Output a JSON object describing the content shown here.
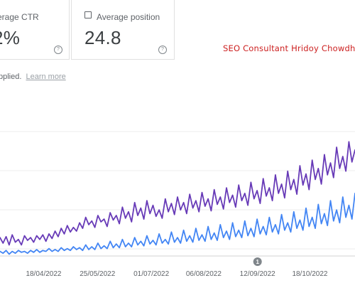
{
  "metrics": {
    "ctr": {
      "label": "verage CTR",
      "value": "2%",
      "help": "?"
    },
    "position": {
      "label": "Average position",
      "value": "24.8",
      "help": "?"
    }
  },
  "watermark": "SEO Consultant Hridoy Chowdhu",
  "filter": {
    "text": "pplied.",
    "link": "Learn more"
  },
  "annotation": {
    "label": "1",
    "date": "12/09/2022"
  },
  "colors": {
    "series_purple": "#673ab7",
    "series_blue": "#4285f4",
    "watermark": "#cc1f1f"
  },
  "chart_data": {
    "type": "line",
    "title": "",
    "xlabel": "",
    "ylabel": "",
    "grid": true,
    "x_ticks": [
      "18/04/2022",
      "25/05/2022",
      "01/07/2022",
      "06/08/2022",
      "12/09/2022",
      "18/10/2022"
    ],
    "x_range": [
      "2022-03-19",
      "2022-11-18"
    ],
    "series": [
      {
        "name": "",
        "color": "#673ab7",
        "values": [
          20,
          14,
          21,
          12,
          23,
          15,
          18,
          12,
          22,
          17,
          20,
          15,
          22,
          18,
          23,
          16,
          24,
          19,
          27,
          21,
          30,
          24,
          33,
          26,
          31,
          27,
          36,
          30,
          42,
          34,
          38,
          31,
          44,
          37,
          40,
          32,
          47,
          39,
          44,
          35,
          53,
          41,
          48,
          37,
          58,
          44,
          52,
          40,
          60,
          46,
          55,
          43,
          50,
          41,
          62,
          48,
          57,
          45,
          64,
          50,
          58,
          46,
          67,
          52,
          60,
          48,
          69,
          54,
          62,
          49,
          72,
          56,
          64,
          51,
          74,
          58,
          66,
          53,
          77,
          60,
          68,
          55,
          80,
          62,
          71,
          57,
          84,
          65,
          74,
          60,
          88,
          68,
          78,
          63,
          92,
          72,
          83,
          67,
          98,
          77,
          89,
          72,
          104,
          83,
          95,
          78,
          110,
          88,
          101,
          85,
          118,
          95,
          108,
          92,
          124,
          102,
          115
        ]
      },
      {
        "name": "",
        "color": "#4285f4",
        "values": [
          5,
          3,
          6,
          2,
          5,
          3,
          6,
          4,
          5,
          3,
          6,
          4,
          7,
          4,
          6,
          5,
          8,
          5,
          7,
          5,
          9,
          6,
          8,
          6,
          10,
          7,
          9,
          6,
          12,
          7,
          10,
          7,
          14,
          8,
          11,
          8,
          16,
          9,
          13,
          9,
          18,
          10,
          14,
          10,
          20,
          12,
          16,
          11,
          22,
          13,
          17,
          12,
          24,
          14,
          18,
          13,
          26,
          15,
          20,
          14,
          28,
          16,
          22,
          15,
          30,
          17,
          23,
          16,
          32,
          18,
          25,
          17,
          34,
          20,
          27,
          18,
          36,
          21,
          28,
          20,
          38,
          22,
          30,
          21,
          40,
          24,
          32,
          23,
          42,
          26,
          34,
          24,
          45,
          28,
          36,
          26,
          48,
          30,
          39,
          28,
          52,
          32,
          42,
          30,
          56,
          35,
          46,
          33,
          60,
          38,
          50,
          36,
          64,
          42,
          55,
          40,
          68
        ]
      }
    ]
  }
}
